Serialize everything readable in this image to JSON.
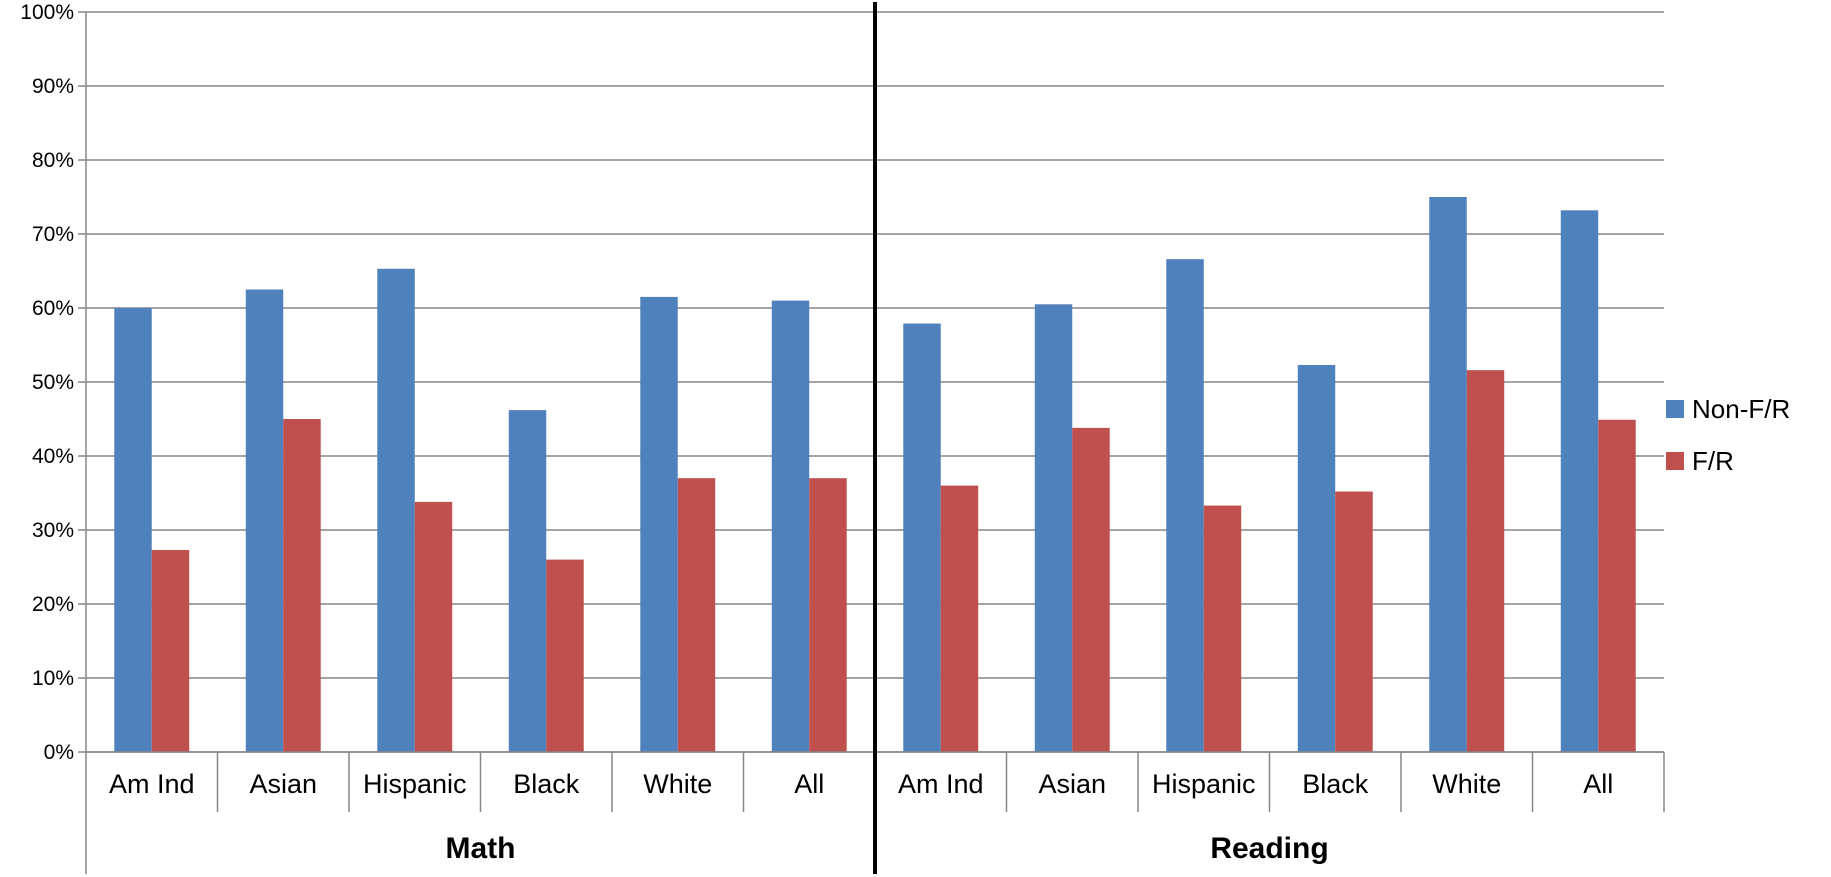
{
  "chart_data": {
    "type": "bar",
    "title": "",
    "xlabel": "",
    "ylabel": "",
    "ylim": [
      0,
      100
    ],
    "y_tick_format": "percent",
    "y_ticks": [
      0,
      10,
      20,
      30,
      40,
      50,
      60,
      70,
      80,
      90,
      100
    ],
    "grid": true,
    "legend_position": "right",
    "groups": [
      {
        "label": "Math",
        "categories": [
          "Am Ind",
          "Asian",
          "Hispanic",
          "Black",
          "White",
          "All"
        ]
      },
      {
        "label": "Reading",
        "categories": [
          "Am Ind",
          "Asian",
          "Hispanic",
          "Black",
          "White",
          "All"
        ]
      }
    ],
    "series": [
      {
        "name": "Non-F/R",
        "color": "#4f81bd",
        "values": [
          60,
          62.5,
          65.3,
          46.2,
          61.5,
          61,
          57.9,
          60.5,
          66.6,
          52.3,
          75,
          73.2
        ]
      },
      {
        "name": "F/R",
        "color": "#c0504d",
        "values": [
          27.3,
          45,
          33.8,
          26,
          37,
          37,
          36,
          43.8,
          33.3,
          35.2,
          51.6,
          44.9
        ]
      }
    ]
  }
}
